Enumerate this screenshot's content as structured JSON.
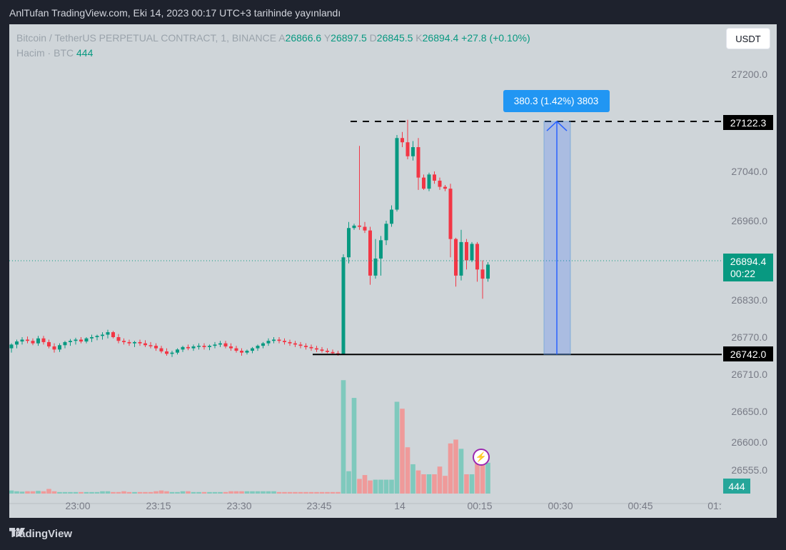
{
  "header": {
    "published_text": "AnlTufan TradingView.com, Eki 14, 2023 00:17 UTC+3 tarihinde yayınlandı"
  },
  "legend": {
    "symbol": "Bitcoin / TetherUS PERPETUAL CONTRACT, 1, BINANCE",
    "o_label": "A",
    "o_value": "26866.6",
    "h_label": "Y",
    "h_value": "26897.5",
    "l_label": "D",
    "l_value": "26845.5",
    "c_label": "K",
    "c_value": "26894.4",
    "change": "+27.8 (+0.10%)",
    "volume_label": "Hacim · BTC",
    "volume_value": "444"
  },
  "currency_button": "USDT",
  "price_axis": {
    "labels": [
      "27200.0",
      "27040.0",
      "26960.0",
      "26830.0",
      "26770.0",
      "26710.0",
      "26650.0",
      "26600.0",
      "26555.0"
    ]
  },
  "price_tags": {
    "top_level": "27122.3",
    "current_price": "26894.4",
    "countdown": "00:22",
    "bottom_level": "26742.0",
    "volume": "444"
  },
  "time_axis": {
    "labels": [
      "23:00",
      "23:15",
      "23:30",
      "23:45",
      "14",
      "00:15",
      "00:30",
      "00:45",
      "01:"
    ]
  },
  "measure_label": "380.3 (1.42%) 3803",
  "footer_brand": "TradingView",
  "colors": {
    "up": "#089981",
    "down": "#f23645",
    "measure": "#2962ff",
    "background": "#cfd5d9"
  },
  "chart_data": {
    "type": "candlestick",
    "timeframe": "1m",
    "price_range": [
      26500,
      27230
    ],
    "x_range": [
      "22:53",
      "01:00"
    ],
    "levels": {
      "top_dashed": 27122.3,
      "bottom_solid": 26742.0
    },
    "last_price": 26894.4,
    "measure": {
      "from": 26742.0,
      "to": 27122.3,
      "diff": 380.3,
      "pct": 1.42,
      "ticks": 3803
    },
    "candles": [
      [
        26752,
        26760,
        26745,
        26758,
        40
      ],
      [
        26758,
        26766,
        26752,
        26763,
        30
      ],
      [
        26763,
        26770,
        26758,
        26766,
        25
      ],
      [
        26766,
        26771,
        26760,
        26764,
        30
      ],
      [
        26764,
        26768,
        26757,
        26760,
        30
      ],
      [
        26760,
        26772,
        26756,
        26768,
        35
      ],
      [
        26768,
        26772,
        26758,
        26762,
        30
      ],
      [
        26762,
        26766,
        26752,
        26755,
        60
      ],
      [
        26755,
        26760,
        26745,
        26750,
        30
      ],
      [
        26750,
        26760,
        26746,
        26757,
        20
      ],
      [
        26757,
        26764,
        26752,
        26762,
        20
      ],
      [
        26762,
        26767,
        26756,
        26764,
        20
      ],
      [
        26764,
        26769,
        26758,
        26766,
        20
      ],
      [
        26766,
        26770,
        26760,
        26763,
        20
      ],
      [
        26763,
        26770,
        26760,
        26768,
        20
      ],
      [
        26768,
        26774,
        26762,
        26770,
        20
      ],
      [
        26770,
        26774,
        26765,
        26772,
        20
      ],
      [
        26772,
        26778,
        26766,
        26774,
        30
      ],
      [
        26774,
        26782,
        26768,
        26778,
        30
      ],
      [
        26778,
        26780,
        26768,
        26770,
        20
      ],
      [
        26770,
        26775,
        26760,
        26764,
        20
      ],
      [
        26764,
        26768,
        26758,
        26762,
        30
      ],
      [
        26762,
        26766,
        26756,
        26760,
        20
      ],
      [
        26760,
        26764,
        26754,
        26762,
        20
      ],
      [
        26762,
        26766,
        26756,
        26760,
        20
      ],
      [
        26760,
        26765,
        26754,
        26757,
        20
      ],
      [
        26757,
        26762,
        26752,
        26756,
        20
      ],
      [
        26756,
        26760,
        26748,
        26752,
        30
      ],
      [
        26752,
        26756,
        26744,
        26747,
        40
      ],
      [
        26747,
        26752,
        26740,
        26743,
        30
      ],
      [
        26743,
        26748,
        26738,
        26745,
        20
      ],
      [
        26745,
        26752,
        26742,
        26750,
        20
      ],
      [
        26750,
        26756,
        26746,
        26754,
        30
      ],
      [
        26754,
        26758,
        26749,
        26752,
        30
      ],
      [
        26752,
        26758,
        26748,
        26755,
        20
      ],
      [
        26755,
        26760,
        26750,
        26756,
        20
      ],
      [
        26756,
        26760,
        26750,
        26754,
        20
      ],
      [
        26754,
        26758,
        26749,
        26756,
        20
      ],
      [
        26756,
        26762,
        26752,
        26758,
        20
      ],
      [
        26758,
        26764,
        26754,
        26760,
        20
      ],
      [
        26760,
        26764,
        26752,
        26755,
        20
      ],
      [
        26755,
        26760,
        26748,
        26752,
        30
      ],
      [
        26752,
        26756,
        26745,
        26748,
        30
      ],
      [
        26748,
        26752,
        26740,
        26745,
        30
      ],
      [
        26745,
        26750,
        26742,
        26748,
        30
      ],
      [
        26748,
        26754,
        26744,
        26752,
        30
      ],
      [
        26752,
        26758,
        26748,
        26756,
        30
      ],
      [
        26756,
        26762,
        26752,
        26760,
        30
      ],
      [
        26760,
        26768,
        26756,
        26764,
        30
      ],
      [
        26764,
        26770,
        26760,
        26766,
        30
      ],
      [
        26766,
        26770,
        26760,
        26764,
        20
      ],
      [
        26764,
        26768,
        26758,
        26762,
        20
      ],
      [
        26762,
        26766,
        26756,
        26760,
        20
      ],
      [
        26760,
        26764,
        26754,
        26758,
        20
      ],
      [
        26758,
        26762,
        26752,
        26756,
        20
      ],
      [
        26756,
        26760,
        26750,
        26754,
        20
      ],
      [
        26754,
        26758,
        26748,
        26752,
        20
      ],
      [
        26752,
        26756,
        26746,
        26750,
        20
      ],
      [
        26750,
        26754,
        26745,
        26748,
        20
      ],
      [
        26748,
        26752,
        26744,
        26746,
        20
      ],
      [
        26746,
        26750,
        26742,
        26744,
        20
      ],
      [
        26744,
        26748,
        26740,
        26743,
        20
      ],
      [
        26743,
        26905,
        26742,
        26900,
        1470
      ],
      [
        26900,
        26958,
        26890,
        26948,
        290
      ],
      [
        26948,
        26955,
        26945,
        26952,
        1240
      ],
      [
        26952,
        27082,
        26945,
        26950,
        190
      ],
      [
        26950,
        26958,
        26940,
        26944,
        240
      ],
      [
        26944,
        26950,
        26855,
        26870,
        170
      ],
      [
        26870,
        26930,
        26865,
        26898,
        180
      ],
      [
        26898,
        26935,
        26870,
        26928,
        180
      ],
      [
        26928,
        26960,
        26920,
        26955,
        180
      ],
      [
        26955,
        26985,
        26950,
        26978,
        180
      ],
      [
        26978,
        27100,
        26975,
        27095,
        1190
      ],
      [
        27095,
        27105,
        27080,
        27088,
        1100
      ],
      [
        27088,
        27125,
        27060,
        27065,
        600
      ],
      [
        27065,
        27090,
        27058,
        27080,
        380
      ],
      [
        27080,
        27095,
        27010,
        27030,
        300
      ],
      [
        27030,
        27035,
        27010,
        27012,
        250
      ],
      [
        27012,
        27038,
        27008,
        27035,
        250
      ],
      [
        27035,
        27040,
        27020,
        27025,
        250
      ],
      [
        27025,
        27030,
        27010,
        27015,
        350
      ],
      [
        27015,
        27018,
        27008,
        27012,
        230
      ],
      [
        27012,
        27020,
        26900,
        26930,
        650
      ],
      [
        26930,
        26932,
        26852,
        26870,
        700
      ],
      [
        26870,
        26945,
        26862,
        26925,
        580
      ],
      [
        26925,
        26930,
        26880,
        26895,
        250
      ],
      [
        26895,
        26925,
        26892,
        26922,
        250
      ],
      [
        26922,
        26925,
        26860,
        26880,
        450
      ],
      [
        26880,
        26895,
        26832,
        26865,
        450
      ],
      [
        26865,
        26892,
        26860,
        26888,
        400
      ]
    ]
  }
}
